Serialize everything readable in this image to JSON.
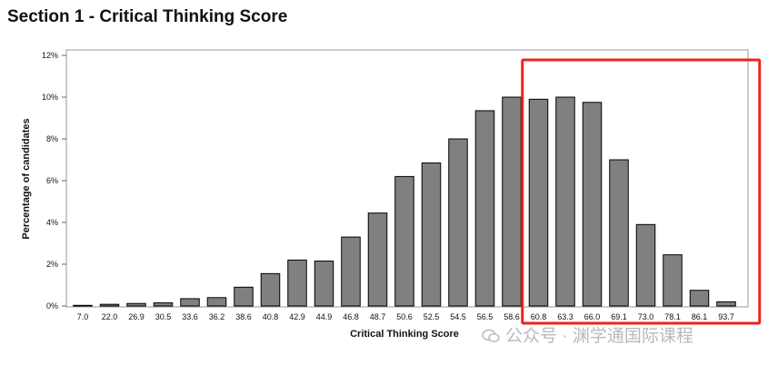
{
  "page": {
    "title": "Section 1 - Critical Thinking Score"
  },
  "chart_data": {
    "type": "bar",
    "title": "Section 1 - Critical Thinking Score",
    "xlabel": "Critical Thinking Score",
    "ylabel": "Percentage of candidates",
    "categories": [
      "7.0",
      "22.0",
      "26.9",
      "30.5",
      "33.6",
      "36.2",
      "38.6",
      "40.8",
      "42.9",
      "44.9",
      "46.8",
      "48.7",
      "50.6",
      "52.5",
      "54.5",
      "56.5",
      "58.6",
      "60.8",
      "63.3",
      "66.0",
      "69.1",
      "73.0",
      "78.1",
      "86.1",
      "93.7"
    ],
    "values": [
      0.03,
      0.08,
      0.12,
      0.15,
      0.35,
      0.4,
      0.9,
      1.55,
      2.2,
      2.15,
      3.3,
      4.45,
      6.2,
      6.85,
      8.0,
      9.35,
      10.0,
      9.9,
      10.0,
      9.75,
      7.0,
      3.9,
      2.45,
      0.75,
      0.2
    ],
    "ylim": [
      0,
      12
    ],
    "yticks": [
      "0%",
      "2%",
      "4%",
      "6%",
      "8%",
      "10%",
      "12%"
    ],
    "grid": false,
    "highlight": {
      "from": "60.8",
      "to": "93.7",
      "color": "#e8261d"
    },
    "colors": {
      "bar_fill": "#808080",
      "bar_stroke": "#000000",
      "frame": "#999999"
    }
  },
  "watermark": {
    "text": "公众号 · 渊学通国际课程"
  }
}
